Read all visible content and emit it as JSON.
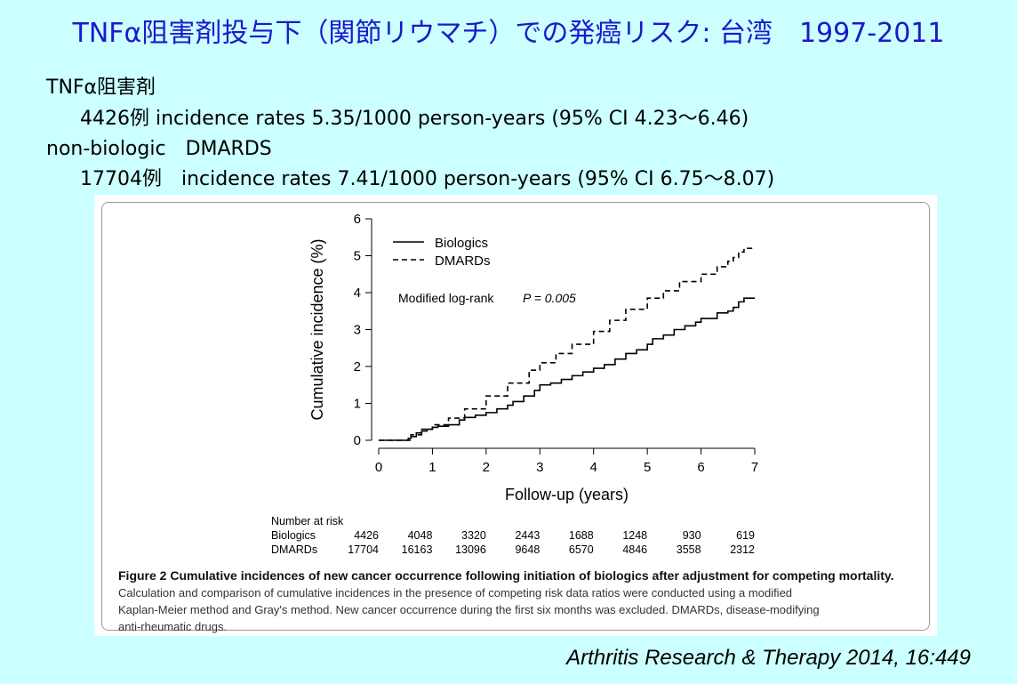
{
  "slide": {
    "title": "TNFα阻害剤投与下（関節リウマチ）での発癌リスク: 台湾　1997-2011",
    "group1_label": "TNFα阻害剤",
    "group1_detail": "4426例 incidence rates 5.35/1000 person-years (95% CI 4.23～6.46)",
    "group2_label": "non-biologic　DMARDS",
    "group2_detail": "17704例　incidence rates 7.41/1000 person-years (95% CI 6.75～8.07)",
    "citation": "Arthritis Research & Therapy 2014, 16:449"
  },
  "figure": {
    "legend_biologics": "Biologics",
    "legend_dmards": "DMARDs",
    "annotation_test": "Modified log-rank",
    "annotation_p": "P = 0.005",
    "risk_table": {
      "header": "Number at risk",
      "rows": [
        {
          "label": "Biologics",
          "values": [
            "4426",
            "4048",
            "3320",
            "2443",
            "1688",
            "1248",
            "930",
            "619"
          ]
        },
        {
          "label": "DMARDs",
          "values": [
            "17704",
            "16163",
            "13096",
            "9648",
            "6570",
            "4846",
            "3558",
            "2312"
          ]
        }
      ]
    },
    "caption_bold": "Figure 2 Cumulative incidences of new cancer occurrence following initiation of biologics after adjustment for competing mortality.",
    "caption_line1": "Calculation and comparison of cumulative incidences in the presence of competing risk data ratios were conducted using a modified",
    "caption_line2": "Kaplan-Meier method and Gray's method. New cancer occurrence during the first six months was excluded. DMARDs, disease-modifying",
    "caption_line3": "anti-rheumatic drugs."
  },
  "chart_data": {
    "type": "line",
    "title": "",
    "xlabel": "Follow-up (years)",
    "ylabel": "Cumulative incidence (%)",
    "xlim": [
      0,
      7
    ],
    "ylim": [
      0,
      6
    ],
    "xticks": [
      "0",
      "1",
      "2",
      "3",
      "4",
      "5",
      "6",
      "7"
    ],
    "yticks": [
      "0",
      "1",
      "2",
      "3",
      "4",
      "5",
      "6"
    ],
    "legend": "top-left",
    "grid": false,
    "series": [
      {
        "name": "Biologics",
        "style": "solid",
        "x": [
          0,
          0.5,
          0.55,
          0.6,
          0.7,
          0.8,
          0.9,
          1.0,
          1.1,
          1.3,
          1.5,
          1.6,
          1.8,
          2.0,
          2.2,
          2.4,
          2.5,
          2.7,
          2.9,
          3.0,
          3.2,
          3.4,
          3.6,
          3.8,
          4.0,
          4.2,
          4.4,
          4.6,
          4.8,
          5.0,
          5.1,
          5.3,
          5.5,
          5.7,
          5.9,
          6.0,
          6.3,
          6.5,
          6.6,
          6.7,
          6.8,
          7.0
        ],
        "y": [
          0,
          0,
          0.05,
          0.1,
          0.2,
          0.25,
          0.3,
          0.35,
          0.38,
          0.42,
          0.55,
          0.62,
          0.68,
          0.75,
          0.85,
          0.95,
          1.05,
          1.2,
          1.35,
          1.5,
          1.55,
          1.65,
          1.75,
          1.85,
          1.95,
          2.05,
          2.2,
          2.35,
          2.45,
          2.6,
          2.75,
          2.85,
          3.0,
          3.1,
          3.2,
          3.3,
          3.45,
          3.5,
          3.6,
          3.75,
          3.85,
          3.85
        ]
      },
      {
        "name": "DMARDs",
        "style": "dashed",
        "x": [
          0,
          0.5,
          0.6,
          0.8,
          1.0,
          1.3,
          1.6,
          2.0,
          2.4,
          2.8,
          3.0,
          3.3,
          3.6,
          4.0,
          4.3,
          4.6,
          5.0,
          5.3,
          5.6,
          6.0,
          6.3,
          6.5,
          6.6,
          6.7,
          6.8,
          7.0
        ],
        "y": [
          0,
          0,
          0.15,
          0.3,
          0.42,
          0.6,
          0.85,
          1.2,
          1.55,
          1.9,
          2.1,
          2.35,
          2.6,
          2.95,
          3.25,
          3.55,
          3.85,
          4.05,
          4.3,
          4.5,
          4.7,
          4.85,
          4.95,
          5.1,
          5.2,
          5.22
        ]
      }
    ]
  }
}
